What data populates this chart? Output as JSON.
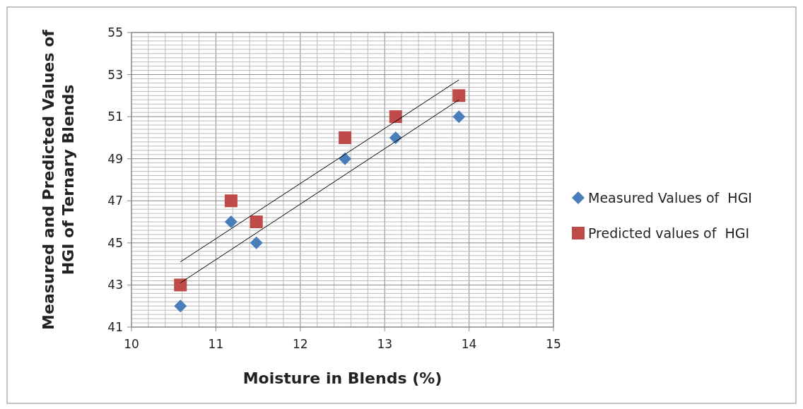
{
  "chart_data": {
    "type": "scatter",
    "xlabel": "Moisture in Blends (%)",
    "ylabel": "Measured and Predicted Values of HGI of Ternary Blends",
    "x": [
      10.58,
      11.18,
      11.48,
      12.53,
      13.13,
      13.88
    ],
    "series": [
      {
        "name": "Measured Values of  HGI",
        "color": "#4a7ebb",
        "marker": "diamond",
        "values": [
          42,
          46,
          45,
          49,
          50,
          51
        ]
      },
      {
        "name": "Predicted values of  HGI",
        "color": "#be4b48",
        "marker": "square",
        "values": [
          43,
          47,
          46,
          50,
          51,
          52
        ]
      },
      {
        "type": "line",
        "color": "#000000",
        "marker": "none",
        "values": [
          44.1,
          45.67,
          46.46,
          49.21,
          50.78,
          52.75
        ]
      },
      {
        "type": "line",
        "color": "#000000",
        "marker": "none",
        "values": [
          43.1,
          44.68,
          45.47,
          48.24,
          49.82,
          51.8
        ]
      }
    ],
    "xlim": [
      10,
      15
    ],
    "xticks": [
      10,
      11,
      12,
      13,
      14,
      15
    ],
    "ylim": [
      41,
      55
    ],
    "yticks": [
      41,
      43,
      45,
      47,
      49,
      51,
      53,
      55
    ],
    "grid": true,
    "legend": "right"
  }
}
